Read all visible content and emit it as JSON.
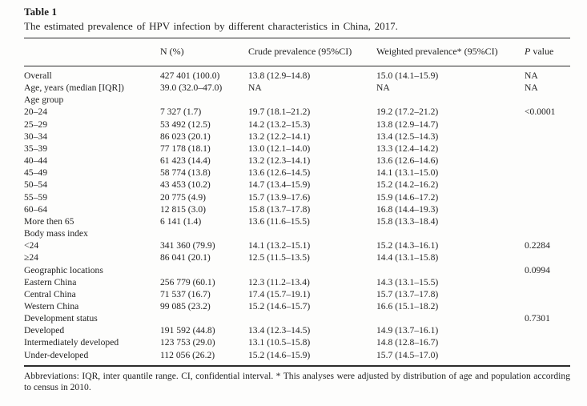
{
  "table": {
    "number": "Table 1",
    "caption": "The estimated prevalence of HPV infection by different characteristics in China, 2017.",
    "columns": [
      "",
      "N (%)",
      "Crude prevalence (95%CI)",
      "Weighted prevalence* (95%CI)",
      "P value"
    ],
    "p_header": {
      "italic": "P",
      "rest": " value"
    },
    "rows": [
      {
        "label": "Overall",
        "n": "427 401 (100.0)",
        "crude": "13.8 (12.9–14.8)",
        "weighted": "15.0 (14.1–15.9)",
        "p": "NA",
        "section": false
      },
      {
        "label": "Age, years (median [IQR])",
        "n": "39.0 (32.0–47.0)",
        "crude": "NA",
        "weighted": "NA",
        "p": "NA",
        "section": false
      },
      {
        "label": "Age group",
        "n": "",
        "crude": "",
        "weighted": "",
        "p": "",
        "section": true
      },
      {
        "label": "20–24",
        "n": "7 327 (1.7)",
        "crude": "19.7 (18.1–21.2)",
        "weighted": "19.2 (17.2–21.2)",
        "p": "<0.0001",
        "section": false
      },
      {
        "label": "25–29",
        "n": "53 492 (12.5)",
        "crude": "14.2 (13.2–15.3)",
        "weighted": "13.8 (12.9–14.7)",
        "p": "",
        "section": false
      },
      {
        "label": "30–34",
        "n": "86 023 (20.1)",
        "crude": "13.2 (12.2–14.1)",
        "weighted": "13.4 (12.5–14.3)",
        "p": "",
        "section": false
      },
      {
        "label": "35–39",
        "n": "77 178 (18.1)",
        "crude": "13.0 (12.1–14.0)",
        "weighted": "13.3 (12.4–14.2)",
        "p": "",
        "section": false
      },
      {
        "label": "40–44",
        "n": "61 423 (14.4)",
        "crude": "13.2 (12.3–14.1)",
        "weighted": "13.6 (12.6–14.6)",
        "p": "",
        "section": false
      },
      {
        "label": "45–49",
        "n": "58 774 (13.8)",
        "crude": "13.6 (12.6–14.5)",
        "weighted": "14.1 (13.1–15.0)",
        "p": "",
        "section": false
      },
      {
        "label": "50–54",
        "n": "43 453 (10.2)",
        "crude": "14.7 (13.4–15.9)",
        "weighted": "15.2 (14.2–16.2)",
        "p": "",
        "section": false
      },
      {
        "label": "55–59",
        "n": "20 775 (4.9)",
        "crude": "15.7 (13.9–17.6)",
        "weighted": "15.9 (14.6–17.2)",
        "p": "",
        "section": false
      },
      {
        "label": "60–64",
        "n": "12 815 (3.0)",
        "crude": "15.8 (13.7–17.8)",
        "weighted": "16.8 (14.4–19.3)",
        "p": "",
        "section": false
      },
      {
        "label": "More then 65",
        "n": "6 141 (1.4)",
        "crude": "13.6 (11.6–15.5)",
        "weighted": "15.8 (13.3–18.4)",
        "p": "",
        "section": false
      },
      {
        "label": "Body mass index",
        "n": "",
        "crude": "",
        "weighted": "",
        "p": "",
        "section": true
      },
      {
        "label": "<24",
        "n": "341 360 (79.9)",
        "crude": "14.1 (13.2–15.1)",
        "weighted": "15.2 (14.3–16.1)",
        "p": "0.2284",
        "section": false
      },
      {
        "label": "≥24",
        "n": "86 041 (20.1)",
        "crude": "12.5 (11.5–13.5)",
        "weighted": "14.4 (13.1–15.8)",
        "p": "",
        "section": false
      },
      {
        "label": "Geographic locations",
        "n": "",
        "crude": "",
        "weighted": "",
        "p": "0.0994",
        "section": true
      },
      {
        "label": "Eastern China",
        "n": "256 779 (60.1)",
        "crude": "12.3 (11.2–13.4)",
        "weighted": "14.3 (13.1–15.5)",
        "p": "",
        "section": false
      },
      {
        "label": "Central China",
        "n": "71 537 (16.7)",
        "crude": "17.4 (15.7–19.1)",
        "weighted": "15.7 (13.7–17.8)",
        "p": "",
        "section": false
      },
      {
        "label": "Western China",
        "n": "99 085 (23.2)",
        "crude": "15.2 (14.6–15.7)",
        "weighted": "16.6 (15.1–18.2)",
        "p": "",
        "section": false
      },
      {
        "label": "Development status",
        "n": "",
        "crude": "",
        "weighted": "",
        "p": "0.7301",
        "section": true
      },
      {
        "label": "Developed",
        "n": "191 592 (44.8)",
        "crude": "13.4 (12.3–14.5)",
        "weighted": "14.9 (13.7–16.1)",
        "p": "",
        "section": false
      },
      {
        "label": "Intermediately developed",
        "n": "123 753 (29.0)",
        "crude": "13.1 (10.5–15.8)",
        "weighted": "14.8 (12.8–16.7)",
        "p": "",
        "section": false
      },
      {
        "label": "Under-developed",
        "n": "112 056 (26.2)",
        "crude": "15.2 (14.6–15.9)",
        "weighted": "15.7 (14.5–17.0)",
        "p": "",
        "section": false
      }
    ]
  },
  "footnote": "Abbreviations: IQR, inter quantile range. CI, confidential interval. * This analyses were adjusted by distribution of age and population according to census in 2010.",
  "colors": {
    "text": "#1f1f1f",
    "rule": "#2b2b2b",
    "background": "#fdfdfc"
  }
}
